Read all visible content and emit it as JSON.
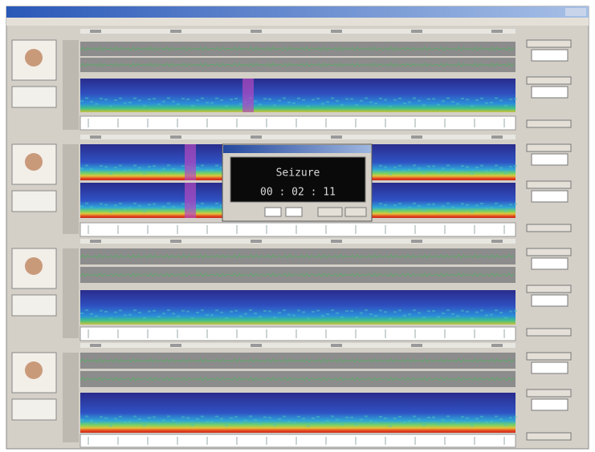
{
  "dialog": {
    "message": "Seizure",
    "elapsed": "00 : 02 : 11"
  }
}
